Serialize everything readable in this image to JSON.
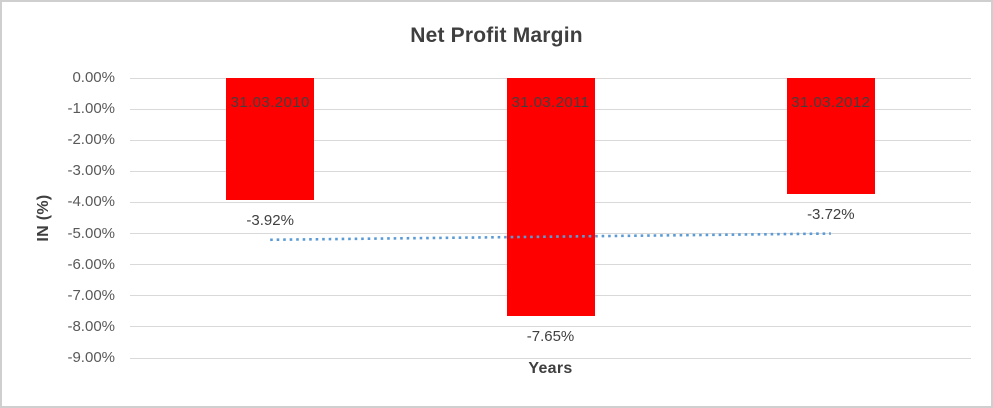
{
  "chart_data": {
    "type": "bar",
    "title": "Net Profit Margin",
    "xlabel": "Years",
    "ylabel": "IN (%)",
    "categories": [
      "31.03.2010",
      "31.03.2011",
      "31.03.2012"
    ],
    "values": [
      -3.92,
      -7.65,
      -3.72
    ],
    "value_labels": [
      "-3.92%",
      "-7.65%",
      "-3.72%"
    ],
    "ylim": [
      -9,
      0
    ],
    "y_tick_labels": [
      "0.00%",
      "-1.00%",
      "-2.00%",
      "-3.00%",
      "-4.00%",
      "-5.00%",
      "-6.00%",
      "-7.00%",
      "-8.00%",
      "-9.00%"
    ],
    "y_tick_values": [
      0,
      -1,
      -2,
      -3,
      -4,
      -5,
      -6,
      -7,
      -8,
      -9
    ],
    "grid": true,
    "legend": "none",
    "colors": {
      "bar_fill": "#FF0000",
      "gridline": "#d9d9d9",
      "title_text": "#3f3f3f",
      "tick_text": "#595959",
      "label_text": "#404040",
      "trendline": "#5B9BD5"
    },
    "trendline": {
      "kind": "linear",
      "style": "dotted",
      "start_value": -5.2,
      "end_value": -5.0
    }
  }
}
